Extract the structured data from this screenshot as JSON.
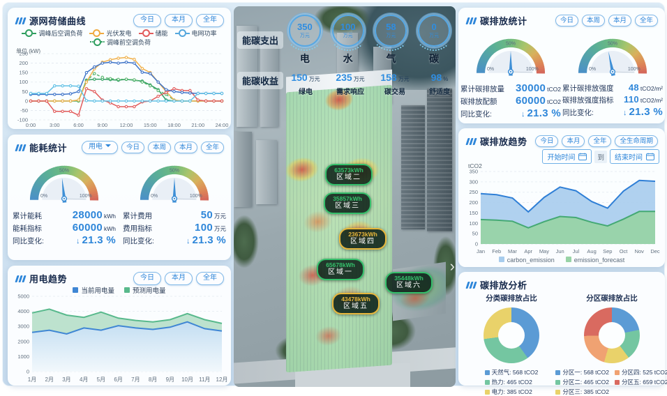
{
  "panels": {
    "curve": {
      "title": "源网荷储曲线",
      "buttons": [
        "今日",
        "本月",
        "全年"
      ],
      "unit_label": "单位 (kW)",
      "legend": [
        {
          "label": "调峰后空调负荷",
          "color": "#2f9e5f",
          "dash": false
        },
        {
          "label": "光伏发电",
          "color": "#f0a93f",
          "dash": false
        },
        {
          "label": "储能",
          "color": "#e25b5b",
          "dash": false
        },
        {
          "label": "电网功率",
          "color": "#54a7dd",
          "dash": false
        },
        {
          "label": "调峰前空调负荷",
          "color": "#2f9e5f",
          "dash": true
        }
      ],
      "chart_data": {
        "type": "line",
        "x_ticks": [
          "0:00",
          "3:00",
          "6:00",
          "9:00",
          "12:00",
          "15:00",
          "18:00",
          "21:00",
          "24:00"
        ],
        "ylim": [
          -100,
          250
        ],
        "ytick_step": 50,
        "series": [
          {
            "name": "调峰后空调负荷",
            "color": "#2f9e5f",
            "dash": false,
            "values": [
              0,
              0,
              0,
              0,
              0,
              0,
              0,
              110,
              115,
              115,
              113,
              110,
              114,
              110,
              105,
              85,
              60,
              5,
              0,
              0,
              0,
              0,
              0,
              0,
              0
            ]
          },
          {
            "name": "调峰前空调负荷",
            "color": "#57b56e",
            "dash": true,
            "values": [
              0,
              0,
              0,
              0,
              0,
              0,
              0,
              105,
              145,
              125,
              118,
              114,
              115,
              112,
              100,
              80,
              55,
              35,
              5,
              0,
              0,
              0,
              0,
              0,
              0
            ]
          },
          {
            "name": "光伏发电",
            "color": "#f0b04a",
            "dash": false,
            "values": [
              0,
              0,
              0,
              0,
              0,
              0,
              5,
              100,
              170,
              205,
              218,
              226,
              230,
              220,
              172,
              150,
              100,
              50,
              5,
              0,
              0,
              0,
              0,
              0,
              0
            ]
          },
          {
            "name": "储能",
            "color": "#e25b5b",
            "dash": false,
            "values": [
              0,
              0,
              0,
              -55,
              -55,
              -55,
              -75,
              65,
              50,
              5,
              -10,
              -30,
              -30,
              -30,
              -5,
              0,
              25,
              45,
              65,
              55,
              55,
              5,
              0,
              0,
              0
            ]
          },
          {
            "name": "电网功率",
            "color": "#3f74c9",
            "dash": false,
            "values": [
              35,
              35,
              35,
              35,
              35,
              38,
              50,
              150,
              180,
              200,
              205,
              200,
              205,
              200,
              152,
              145,
              100,
              60,
              50,
              45,
              42,
              40,
              40,
              40,
              40
            ]
          },
          {
            "name": "",
            "color": "#62c1e5",
            "dash": false,
            "values": [
              40,
              40,
              40,
              80,
              80,
              80,
              78,
              2,
              0,
              0,
              0,
              0,
              0,
              0,
              0,
              0,
              0,
              0,
              0,
              0,
              0,
              40,
              40,
              40,
              40
            ]
          }
        ]
      }
    },
    "energy": {
      "title": "能耗统计",
      "dropdown": "用电",
      "buttons": [
        "今日",
        "本周",
        "本月",
        "全年"
      ],
      "gauges": [
        {
          "percent": 46.7,
          "ticks": [
            "0%",
            "50%",
            "100%"
          ],
          "rows": [
            {
              "label": "累计能耗",
              "value": "28000",
              "unit": "kWh"
            },
            {
              "label": "能耗指标",
              "value": "60000",
              "unit": "kWh"
            }
          ],
          "yoy_label": "同比变化:",
          "yoy_value": "21.3 %"
        },
        {
          "percent": 50,
          "ticks": [
            "0%",
            "50%",
            "100%"
          ],
          "rows": [
            {
              "label": "累计费用",
              "value": "50",
              "unit": "万元"
            },
            {
              "label": "费用指标",
              "value": "100",
              "unit": "万元"
            }
          ],
          "yoy_label": "同比变化:",
          "yoy_value": "21.3 %"
        }
      ]
    },
    "usage": {
      "title": "用电趋势",
      "buttons": [
        "今日",
        "本月",
        "全年"
      ],
      "chart_data": {
        "type": "area",
        "categories": [
          "1月",
          "2月",
          "3月",
          "4月",
          "5月",
          "6月",
          "7月",
          "8月",
          "9月",
          "10月",
          "11月",
          "12月"
        ],
        "ylim": [
          0,
          5000
        ],
        "ytick_step": 1000,
        "series": [
          {
            "name": "当前用电量",
            "color": "#3f86d4",
            "values": [
              2600,
              2750,
              2500,
              2900,
              2750,
              3050,
              2900,
              2800,
              2950,
              3300,
              2850,
              2700
            ]
          },
          {
            "name": "预测用电量",
            "color": "#58b98c",
            "values": [
              3900,
              4150,
              3750,
              3600,
              3950,
              3550,
              3400,
              3300,
              3450,
              3850,
              3450,
              3200
            ]
          }
        ]
      }
    }
  },
  "center": {
    "expense_label": "能碳支出",
    "income_label": "能碳收益",
    "expense_items": [
      {
        "value": "350",
        "unit": "万元",
        "name": "电"
      },
      {
        "value": "100",
        "unit": "万元",
        "name": "水"
      },
      {
        "value": "58",
        "unit": "万元",
        "name": "气"
      },
      {
        "value": "0",
        "unit": "万元",
        "name": "碳"
      }
    ],
    "income_items": [
      {
        "value": "150",
        "unit": "万元",
        "name": "绿电"
      },
      {
        "value": "235",
        "unit": "万元",
        "name": "需求响应"
      },
      {
        "value": "158",
        "unit": "万元",
        "name": "碳交易"
      },
      {
        "value": "98",
        "unit": "%",
        "name": "舒适度"
      }
    ],
    "zones": [
      {
        "value": "63573kWh",
        "name": "区域二",
        "accent": "#35c06b"
      },
      {
        "value": "35857kWh",
        "name": "区域三",
        "accent": "#35c06b"
      },
      {
        "value": "23673kWh",
        "name": "区域四",
        "accent": "#e7b73c"
      },
      {
        "value": "65678kWh",
        "name": "区域一",
        "accent": "#35c06b"
      },
      {
        "value": "35448kWh",
        "name": "区域六",
        "accent": "#35c06b"
      },
      {
        "value": "43478kWh",
        "name": "区域五",
        "accent": "#e7b73c"
      }
    ]
  },
  "carbon_stats": {
    "title": "碳排放统计",
    "buttons": [
      "今日",
      "本周",
      "本月",
      "全年"
    ],
    "gauges": [
      {
        "percent": 50,
        "ticks": [
          "0%",
          "50%",
          "100%"
        ],
        "rows": [
          {
            "label": "累计碳排放量",
            "value": "30000",
            "unit": "tCO2"
          },
          {
            "label": "碳排放配额",
            "value": "60000",
            "unit": "tCO2"
          }
        ],
        "yoy_label": "同比变化:",
        "yoy_value": "21.3 %"
      },
      {
        "percent": 43.6,
        "ticks": [
          "0%",
          "50%",
          "100%"
        ],
        "rows": [
          {
            "label": "累计碳排放强度",
            "value": "48",
            "unit": "tCO2/m²"
          },
          {
            "label": "碳排放强度指标",
            "value": "110",
            "unit": "tCO2/m²"
          }
        ],
        "yoy_label": "同比变化:",
        "yoy_value": "21.3 %"
      }
    ]
  },
  "carbon_trend": {
    "title": "碳排放趋势",
    "buttons": [
      "今日",
      "本月",
      "全年",
      "全生命周期"
    ],
    "start_label": "开始时间",
    "to_label": "到",
    "end_label": "结束时间",
    "ylabel": "tCO2",
    "chart_data": {
      "type": "area",
      "x": [
        "Jan",
        "Feb",
        "Mar",
        "Apr",
        "May",
        "Jun",
        "Jul",
        "Aug",
        "Sep",
        "Oct",
        "Nov",
        "Dec"
      ],
      "ylim": [
        0,
        350
      ],
      "ytick_step": 50,
      "series": [
        {
          "name": "carbon_emission",
          "color": "#2f7fd6",
          "fill": "#a7cced",
          "values": [
            243,
            238,
            222,
            155,
            225,
            275,
            257,
            205,
            173,
            255,
            307,
            303
          ]
        },
        {
          "name": "emission_forecast",
          "color": "#44a974",
          "fill": "#98d3a6",
          "values": [
            118,
            115,
            110,
            78,
            108,
            133,
            128,
            105,
            87,
            120,
            157,
            157
          ]
        }
      ],
      "legend": [
        "carbon_emission",
        "emission_forecast"
      ]
    }
  },
  "carbon_analysis": {
    "title": "碳排放分析",
    "charts": [
      {
        "title": "分类碳排放占比",
        "items": [
          {
            "label": "天然气:",
            "num": 568,
            "value": "568 tCO2",
            "color": "#5b9bd5"
          },
          {
            "label": "热力:",
            "num": 465,
            "value": "465 tCO2",
            "color": "#74c6a1"
          },
          {
            "label": "电力:",
            "num": 385,
            "value": "385 tCO2",
            "color": "#e9d26a"
          }
        ]
      },
      {
        "title": "分区碳排放占比",
        "items": [
          {
            "label": "分区一:",
            "num": 568,
            "value": "568 tCO2",
            "color": "#5b9bd5"
          },
          {
            "label": "分区二:",
            "num": 465,
            "value": "465 tCO2",
            "color": "#74c6a1"
          },
          {
            "label": "分区三:",
            "num": 385,
            "value": "385 tCO2",
            "color": "#e9d26a"
          },
          {
            "label": "分区四:",
            "num": 525,
            "value": "525 tCO2",
            "color": "#f0a272"
          },
          {
            "label": "分区五:",
            "num": 659,
            "value": "659 tCO2",
            "color": "#d96a60"
          }
        ]
      }
    ]
  }
}
